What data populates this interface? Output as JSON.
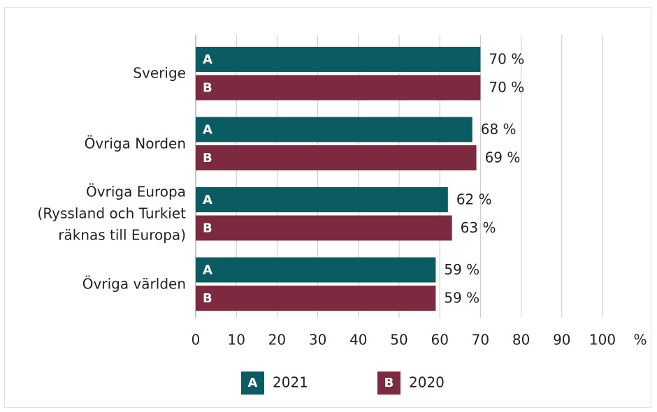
{
  "chart_data": {
    "type": "bar",
    "orientation": "horizontal",
    "categories": [
      "Sverige",
      "Övriga Norden",
      "Övriga Europa\n(Ryssland och Turkiet\nräknas till Europa)",
      "Övriga världen"
    ],
    "series": [
      {
        "name": "2021",
        "key": "A",
        "color": "#0b5b63",
        "values": [
          70,
          68,
          62,
          59
        ],
        "value_labels": [
          "70 %",
          "68 %",
          "62 %",
          "59 %"
        ]
      },
      {
        "name": "2020",
        "key": "B",
        "color": "#7d2a40",
        "values": [
          70,
          69,
          63,
          59
        ],
        "value_labels": [
          "70 %",
          "69 %",
          "63 %",
          "59 %"
        ]
      }
    ],
    "xlim": [
      0,
      100
    ],
    "xticks": [
      0,
      10,
      20,
      30,
      40,
      50,
      60,
      70,
      80,
      90,
      100
    ],
    "xunit": "%",
    "grid": true
  }
}
